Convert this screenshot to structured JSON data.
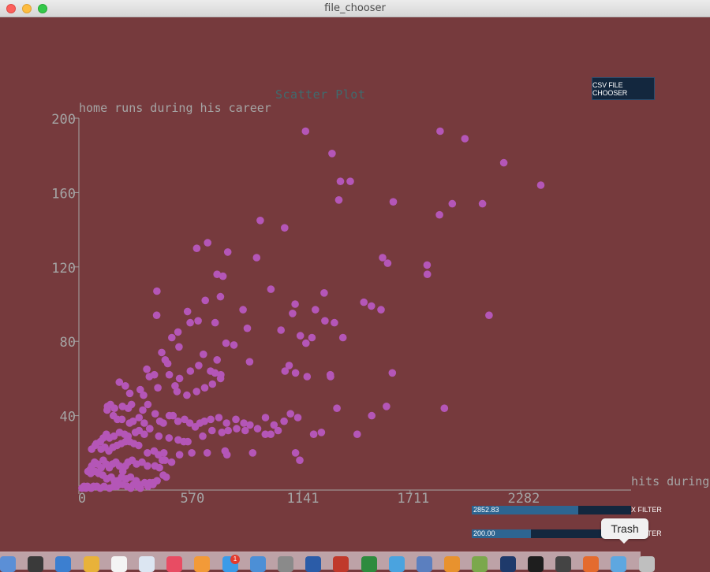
{
  "window": {
    "title": "file_chooser"
  },
  "controls": {
    "csv_button_label": "CSV FILE CHOOSER",
    "x_filter": {
      "value_text": "2852.83",
      "label": "X FILTER",
      "fraction": 0.67
    },
    "y_filter": {
      "value_text": "200.00",
      "label": "Y FILTER",
      "fraction": 0.37
    }
  },
  "tooltip": {
    "text": "Trash"
  },
  "dock": {
    "icons": [
      "finder-icon",
      "dashboard-icon",
      "safari-icon",
      "chrome-icon",
      "calendar-icon",
      "preview-icon",
      "itunes-icon",
      "ibooks-icon",
      "app-store-icon",
      "xcode-icon",
      "system-preferences-icon",
      "word-icon",
      "app-icon",
      "excel-icon",
      "app-icon",
      "app-icon",
      "app-icon",
      "app-icon",
      "processing-icon",
      "terminal-icon",
      "sublime-icon",
      "java-icon",
      "folder-icon",
      "trash-icon"
    ],
    "app_store_badge": "1"
  },
  "colors": {
    "background": "#763A3D",
    "point": "#B456B7",
    "axis": "#A5A5A5",
    "title": "#3F6B6E",
    "button": "#13273E",
    "slider_fill": "#2D6591"
  },
  "chart_data": {
    "type": "scatter",
    "title": "Scatter Plot",
    "xlabel": "hits during hi",
    "ylabel": "home runs during his career",
    "xlim": [
      0,
      2852.83
    ],
    "ylim": [
      0,
      200
    ],
    "x_ticks": [
      "0",
      "570",
      "1141",
      "1711",
      "2282"
    ],
    "y_ticks": [
      "40",
      "80",
      "120",
      "160",
      "200"
    ],
    "grid": false,
    "points": [
      [
        1171,
        193
      ],
      [
        1866,
        193
      ],
      [
        1994,
        189
      ],
      [
        1308,
        181
      ],
      [
        2195,
        176
      ],
      [
        2386,
        164
      ],
      [
        1351,
        166
      ],
      [
        1402,
        166
      ],
      [
        1343,
        156
      ],
      [
        1624,
        155
      ],
      [
        1929,
        154
      ],
      [
        2085,
        154
      ],
      [
        1863,
        148
      ],
      [
        937,
        145
      ],
      [
        1063,
        141
      ],
      [
        665,
        133
      ],
      [
        609,
        130
      ],
      [
        769,
        128
      ],
      [
        918,
        125
      ],
      [
        1569,
        125
      ],
      [
        1799,
        121
      ],
      [
        1800,
        116
      ],
      [
        1595,
        122
      ],
      [
        714,
        116
      ],
      [
        744,
        115
      ],
      [
        403,
        107
      ],
      [
        992,
        108
      ],
      [
        1267,
        106
      ],
      [
        731,
        104
      ],
      [
        653,
        102
      ],
      [
        1117,
        100
      ],
      [
        402,
        94
      ],
      [
        848,
        97
      ],
      [
        1561,
        97
      ],
      [
        1472,
        101
      ],
      [
        1511,
        99
      ],
      [
        2119,
        94
      ],
      [
        1222,
        97
      ],
      [
        704,
        90
      ],
      [
        1104,
        95
      ],
      [
        616,
        91
      ],
      [
        561,
        96
      ],
      [
        575,
        90
      ],
      [
        1271,
        91
      ],
      [
        1320,
        90
      ],
      [
        512,
        85
      ],
      [
        870,
        87
      ],
      [
        1044,
        86
      ],
      [
        1144,
        83
      ],
      [
        1204,
        82
      ],
      [
        1364,
        82
      ],
      [
        480,
        82
      ],
      [
        517,
        77
      ],
      [
        643,
        73
      ],
      [
        760,
        79
      ],
      [
        801,
        78
      ],
      [
        1173,
        79
      ],
      [
        428,
        74
      ],
      [
        714,
        70
      ],
      [
        882,
        69
      ],
      [
        1086,
        67
      ],
      [
        1065,
        64
      ],
      [
        1119,
        63
      ],
      [
        446,
        70
      ],
      [
        459,
        68
      ],
      [
        467,
        62
      ],
      [
        520,
        60
      ],
      [
        576,
        64
      ],
      [
        619,
        67
      ],
      [
        680,
        64
      ],
      [
        703,
        63
      ],
      [
        733,
        62
      ],
      [
        364,
        61
      ],
      [
        351,
        65
      ],
      [
        390,
        62
      ],
      [
        209,
        58
      ],
      [
        408,
        55
      ],
      [
        497,
        56
      ],
      [
        507,
        53
      ],
      [
        558,
        51
      ],
      [
        608,
        53
      ],
      [
        650,
        55
      ],
      [
        690,
        57
      ],
      [
        732,
        60
      ],
      [
        1300,
        61
      ],
      [
        1299,
        62
      ],
      [
        1179,
        61
      ],
      [
        1619,
        63
      ],
      [
        240,
        56
      ],
      [
        263,
        52
      ],
      [
        317,
        54
      ],
      [
        334,
        51
      ],
      [
        356,
        46
      ],
      [
        330,
        43
      ],
      [
        272,
        46
      ],
      [
        255,
        44
      ],
      [
        225,
        45
      ],
      [
        184,
        44
      ],
      [
        163,
        46
      ],
      [
        146,
        43
      ],
      [
        148,
        45
      ],
      [
        178,
        40
      ],
      [
        199,
        38
      ],
      [
        222,
        38
      ],
      [
        262,
        36
      ],
      [
        280,
        37
      ],
      [
        311,
        39
      ],
      [
        338,
        36
      ],
      [
        366,
        33
      ],
      [
        394,
        41
      ],
      [
        418,
        37
      ],
      [
        436,
        36
      ],
      [
        467,
        40
      ],
      [
        486,
        40
      ],
      [
        512,
        37
      ],
      [
        546,
        38
      ],
      [
        573,
        36
      ],
      [
        601,
        34
      ],
      [
        625,
        36
      ],
      [
        649,
        37
      ],
      [
        681,
        38
      ],
      [
        723,
        39
      ],
      [
        763,
        36
      ],
      [
        811,
        38
      ],
      [
        852,
        36
      ],
      [
        884,
        35
      ],
      [
        923,
        33
      ],
      [
        964,
        39
      ],
      [
        1008,
        35
      ],
      [
        1060,
        37
      ],
      [
        1093,
        41
      ],
      [
        1131,
        39
      ],
      [
        1333,
        44
      ],
      [
        1513,
        40
      ],
      [
        1589,
        45
      ],
      [
        1888,
        44
      ],
      [
        1213,
        30
      ],
      [
        1253,
        31
      ],
      [
        1438,
        30
      ],
      [
        991,
        30
      ],
      [
        1029,
        32
      ],
      [
        963,
        30
      ],
      [
        859,
        32
      ],
      [
        815,
        33
      ],
      [
        771,
        32
      ],
      [
        739,
        31
      ],
      [
        688,
        32
      ],
      [
        640,
        29
      ],
      [
        563,
        26
      ],
      [
        542,
        26
      ],
      [
        513,
        27
      ],
      [
        466,
        28
      ],
      [
        413,
        29
      ],
      [
        366,
        33
      ],
      [
        338,
        30
      ],
      [
        311,
        32
      ],
      [
        292,
        31
      ],
      [
        254,
        29
      ],
      [
        236,
        30
      ],
      [
        210,
        31
      ],
      [
        181,
        29
      ],
      [
        158,
        28
      ],
      [
        142,
        30
      ],
      [
        126,
        28
      ],
      [
        90,
        25
      ],
      [
        111,
        26
      ],
      [
        66,
        22
      ],
      [
        84,
        24
      ],
      [
        115,
        22
      ],
      [
        134,
        23
      ],
      [
        155,
        21
      ],
      [
        176,
        23
      ],
      [
        197,
        24
      ],
      [
        219,
        25
      ],
      [
        241,
        26
      ],
      [
        262,
        26
      ],
      [
        284,
        25
      ],
      [
        309,
        24
      ],
      [
        354,
        20
      ],
      [
        389,
        21
      ],
      [
        439,
        20
      ],
      [
        445,
        16
      ],
      [
        479,
        15
      ],
      [
        520,
        19
      ],
      [
        583,
        20
      ],
      [
        663,
        20
      ],
      [
        755,
        21
      ],
      [
        765,
        19
      ],
      [
        898,
        20
      ],
      [
        1119,
        20
      ],
      [
        1141,
        16
      ],
      [
        411,
        19
      ],
      [
        431,
        16
      ],
      [
        416,
        12
      ],
      [
        393,
        13
      ],
      [
        354,
        13
      ],
      [
        326,
        15
      ],
      [
        298,
        14
      ],
      [
        275,
        16
      ],
      [
        254,
        15
      ],
      [
        241,
        13
      ],
      [
        227,
        10
      ],
      [
        209,
        13
      ],
      [
        191,
        15
      ],
      [
        174,
        14
      ],
      [
        157,
        12
      ],
      [
        141,
        14
      ],
      [
        126,
        16
      ],
      [
        115,
        12
      ],
      [
        96,
        14
      ],
      [
        81,
        15
      ],
      [
        67,
        13
      ],
      [
        58,
        11
      ],
      [
        47,
        10
      ],
      [
        61,
        9
      ],
      [
        84,
        10
      ],
      [
        102,
        9
      ],
      [
        123,
        8
      ],
      [
        144,
        6
      ],
      [
        167,
        7
      ],
      [
        183,
        5
      ],
      [
        200,
        5
      ],
      [
        221,
        7
      ],
      [
        245,
        6
      ],
      [
        267,
        7
      ],
      [
        296,
        5
      ],
      [
        312,
        3
      ],
      [
        340,
        4
      ],
      [
        366,
        4
      ],
      [
        384,
        4
      ],
      [
        404,
        5
      ],
      [
        436,
        8
      ],
      [
        451,
        7
      ],
      [
        26,
        2
      ],
      [
        16,
        1
      ],
      [
        36,
        1
      ],
      [
        44,
        2
      ],
      [
        63,
        1
      ],
      [
        76,
        2
      ],
      [
        93,
        2
      ],
      [
        110,
        1
      ],
      [
        130,
        2
      ],
      [
        158,
        1
      ],
      [
        180,
        2
      ],
      [
        195,
        2
      ],
      [
        209,
        3
      ],
      [
        226,
        3
      ],
      [
        250,
        2
      ],
      [
        268,
        1
      ],
      [
        283,
        3
      ],
      [
        304,
        2
      ],
      [
        318,
        1
      ],
      [
        357,
        2
      ],
      [
        383,
        3
      ]
    ]
  }
}
